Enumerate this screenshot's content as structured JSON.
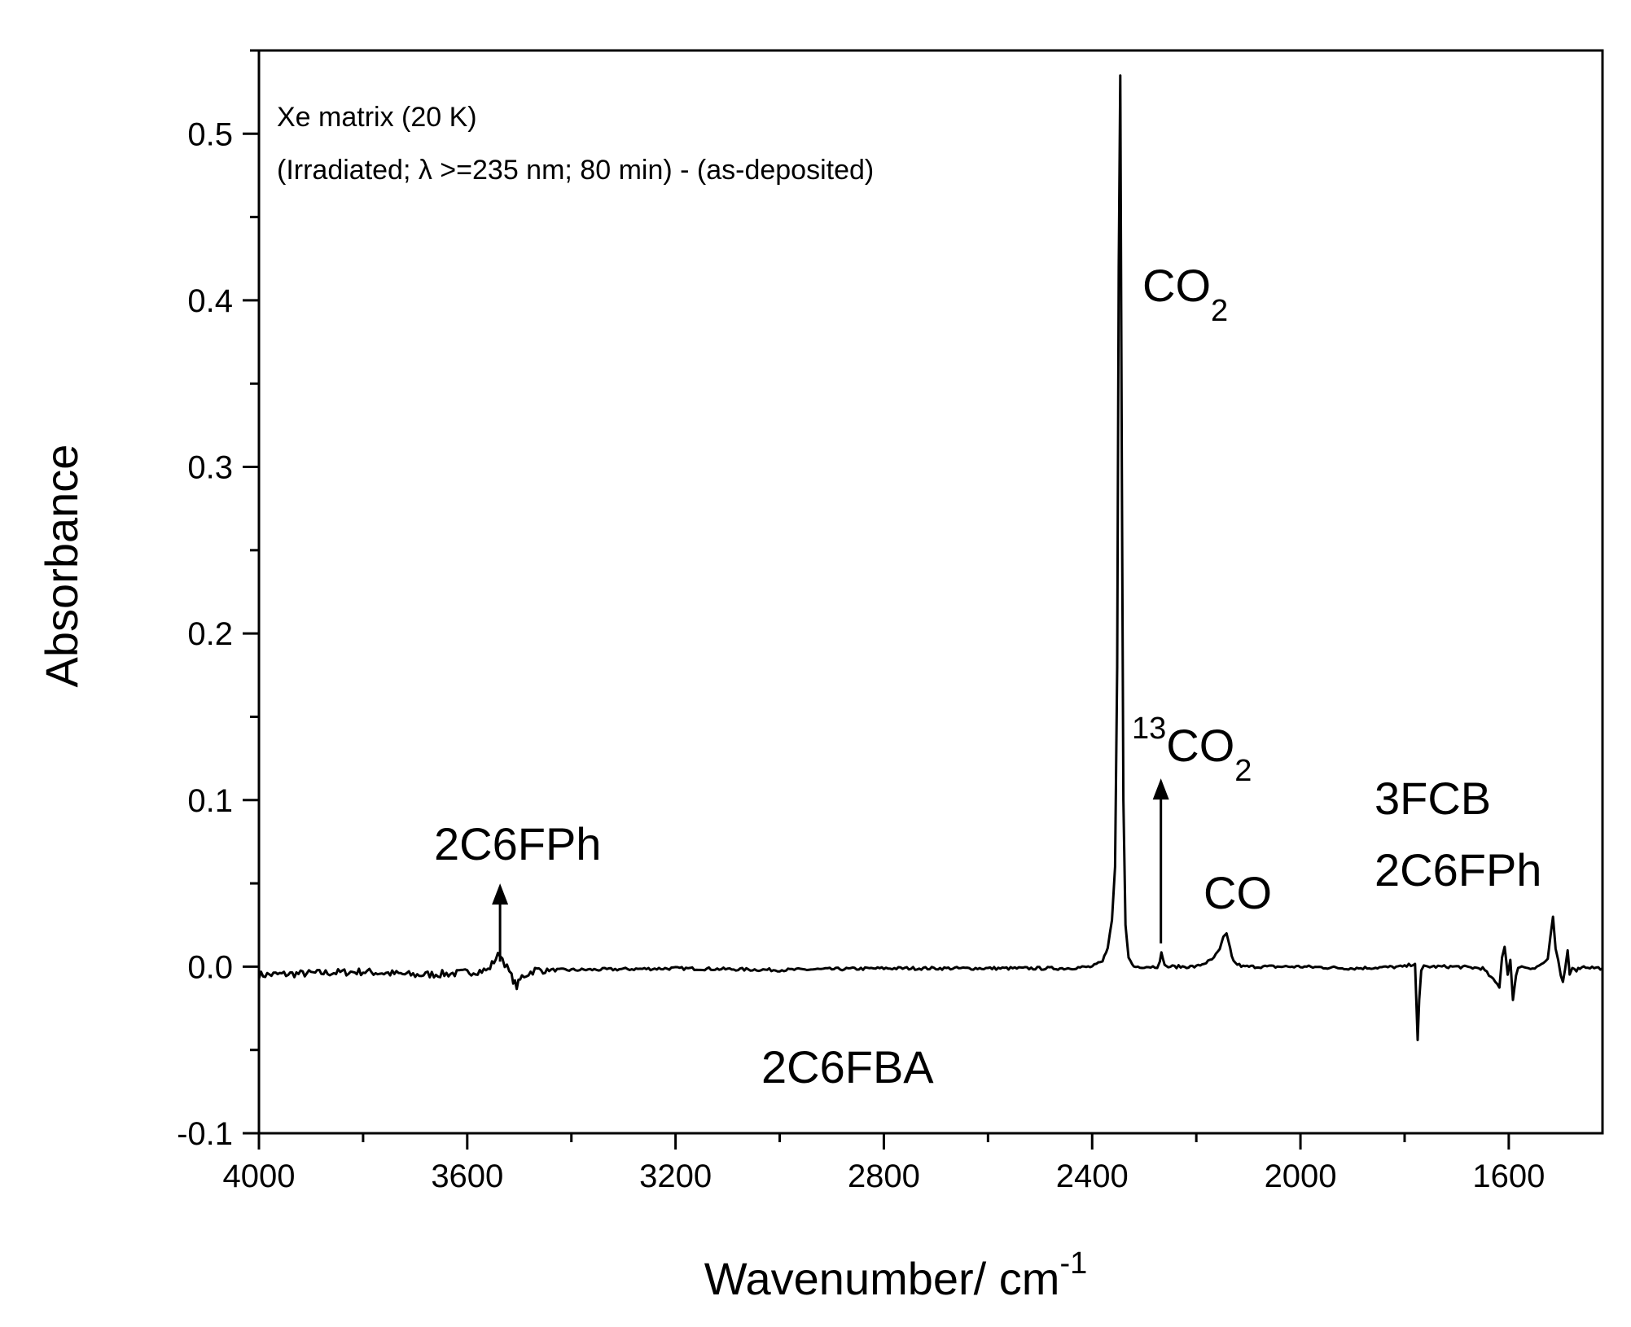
{
  "chart_data": {
    "type": "line",
    "xlabel": "Wavenumber/ cm",
    "xlabel_sup": "-1",
    "ylabel": "Absorbance",
    "xlim": [
      4000,
      1420
    ],
    "ylim": [
      -0.1,
      0.55
    ],
    "x_reversed": true,
    "grid": false,
    "x_ticks": [
      4000,
      3600,
      3200,
      2800,
      2400,
      2000,
      1600
    ],
    "x_tick_labels": [
      "4000",
      "3600",
      "3200",
      "2800",
      "2400",
      "2000",
      "1600"
    ],
    "y_ticks": [
      -0.1,
      0.0,
      0.1,
      0.2,
      0.3,
      0.4,
      0.5
    ],
    "y_tick_labels": [
      "-0.1",
      "0.0",
      "0.1",
      "0.2",
      "0.3",
      "0.4",
      "0.5"
    ],
    "notes": [
      "Xe matrix (20 K)",
      "(Irradiated; λ >=235 nm; 80 min) - (as-deposited)"
    ],
    "annotations": {
      "co2": {
        "main": "CO",
        "sub": "2",
        "x": 2260,
        "y": 0.4
      },
      "co2_13": {
        "sup": "13",
        "main": "CO",
        "sub": "2",
        "x": 2280,
        "y": 0.135
      },
      "co": {
        "text": "CO",
        "x": 2130,
        "y": 0.042
      },
      "ph_left": {
        "text": "2C6FPh",
        "x": 3540,
        "y": 0.068
      },
      "fcb": {
        "text": "3FCB",
        "x": 1690,
        "y": 0.094
      },
      "ph_right": {
        "text": "2C6FPh",
        "x": 1690,
        "y": 0.055
      },
      "fba": {
        "text": "2C6FBA",
        "x": 2990,
        "y": -0.068
      }
    },
    "arrows": [
      {
        "x": 3537,
        "y_from": 0.003,
        "y_to": 0.05
      },
      {
        "x": 2268,
        "y_from": 0.014,
        "y_to": 0.113
      }
    ],
    "series": [
      {
        "x": [
          4000,
          3900,
          3800,
          3700,
          3620,
          3560,
          3545,
          3537,
          3528,
          3515,
          3505,
          3495,
          3470,
          3400,
          3200,
          3000,
          2800,
          2600,
          2450,
          2400,
          2380,
          2370,
          2362,
          2356,
          2352,
          2349,
          2346,
          2343,
          2340,
          2336,
          2330,
          2320,
          2300,
          2275,
          2270,
          2267,
          2264,
          2258,
          2230,
          2200,
          2170,
          2155,
          2148,
          2142,
          2138,
          2132,
          2125,
          2110,
          2080,
          2000,
          1900,
          1800,
          1780,
          1775,
          1772,
          1768,
          1763,
          1740,
          1700,
          1650,
          1618,
          1613,
          1608,
          1602,
          1597,
          1592,
          1586,
          1582,
          1575,
          1550,
          1525,
          1520,
          1515,
          1510,
          1505,
          1500,
          1496,
          1492,
          1487,
          1483,
          1478,
          1470,
          1460,
          1420
        ],
        "y": [
          -0.005,
          -0.004,
          -0.003,
          -0.005,
          -0.004,
          -0.002,
          0.005,
          0.008,
          0.002,
          -0.006,
          -0.012,
          -0.006,
          -0.002,
          -0.002,
          -0.001,
          -0.002,
          -0.001,
          -0.001,
          -0.001,
          0.0,
          0.003,
          0.012,
          0.028,
          0.06,
          0.18,
          0.42,
          0.535,
          0.3,
          0.1,
          0.025,
          0.005,
          0.0,
          0.0,
          0.0,
          0.004,
          0.008,
          0.004,
          0.0,
          0.0,
          0.0,
          0.004,
          0.01,
          0.018,
          0.02,
          0.015,
          0.006,
          0.002,
          0.0,
          0.0,
          0.0,
          -0.001,
          0.0,
          0.002,
          -0.044,
          -0.02,
          -0.003,
          0.0,
          0.0,
          0.0,
          -0.001,
          -0.012,
          0.006,
          0.012,
          -0.004,
          0.004,
          -0.02,
          -0.006,
          0.0,
          0.0,
          -0.001,
          0.004,
          0.018,
          0.03,
          0.01,
          0.004,
          -0.006,
          -0.01,
          -0.002,
          0.01,
          -0.005,
          0.0,
          -0.002,
          0.0,
          -0.001
        ]
      }
    ]
  }
}
